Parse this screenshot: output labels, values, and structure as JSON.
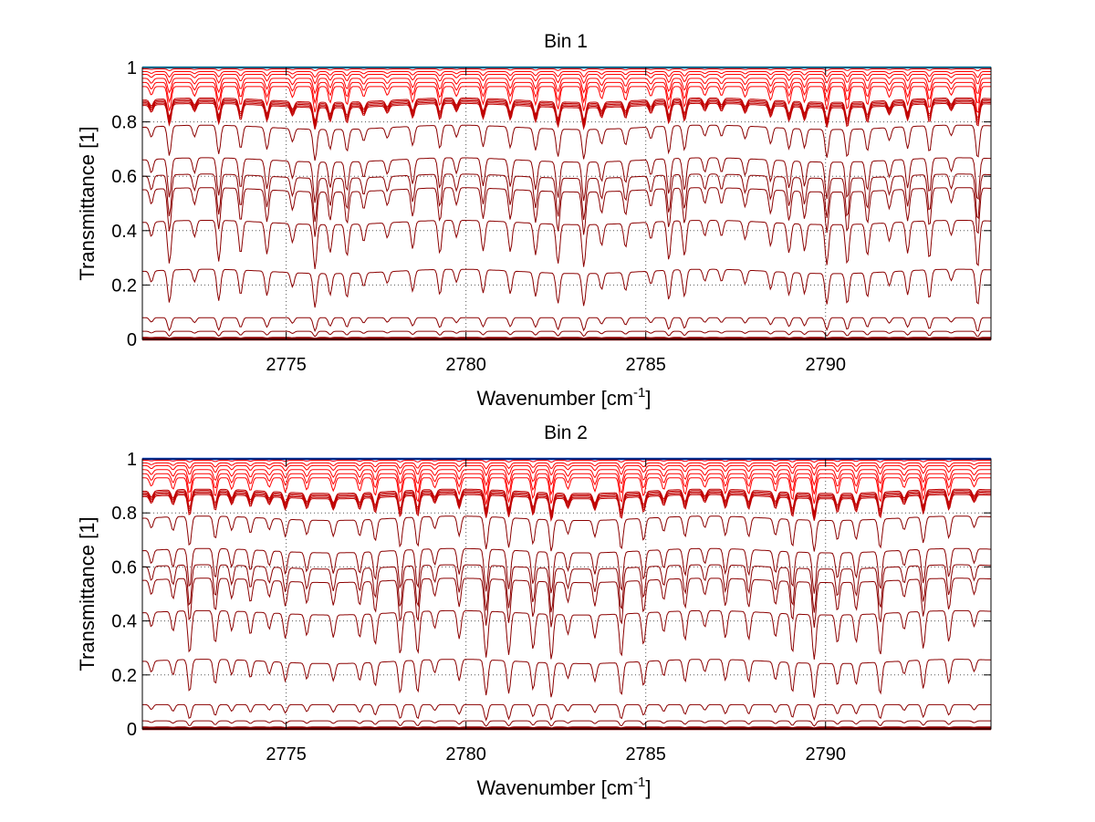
{
  "chart_data": [
    {
      "type": "line",
      "title": "Bin 1",
      "xlabel": "Wavenumber [cm",
      "xlabel_sup": "-1",
      "xlabel_close": "]",
      "ylabel": "Transmittance [1]",
      "xlim": [
        2771,
        2794.6
      ],
      "ylim": [
        0,
        1
      ],
      "xticks": [
        2775,
        2780,
        2785,
        2790
      ],
      "xtick_labels": [
        "2775",
        "2780",
        "2785",
        "2790"
      ],
      "yticks": [
        0,
        0.2,
        0.4,
        0.6,
        0.8,
        1
      ],
      "ytick_labels": [
        "0",
        "0.2",
        "0.4",
        "0.6",
        "0.8",
        "1"
      ],
      "grid": true,
      "series_colors": [
        "#00bfff",
        "#ff0000",
        "#c00000",
        "#8b0000"
      ],
      "series_baselines": [
        1.0,
        0.995,
        0.985,
        0.975,
        0.96,
        0.945,
        0.93,
        0.88,
        0.875,
        0.87,
        0.865,
        0.86,
        0.78,
        0.66,
        0.6,
        0.55,
        0.43,
        0.25,
        0.08,
        0.03,
        0.005,
        0.0
      ]
    },
    {
      "type": "line",
      "title": "Bin 2",
      "xlabel": "Wavenumber [cm",
      "xlabel_sup": "-1",
      "xlabel_close": "]",
      "ylabel": "Transmittance [1]",
      "xlim": [
        2771,
        2794.6
      ],
      "ylim": [
        0,
        1
      ],
      "xticks": [
        2775,
        2780,
        2785,
        2790
      ],
      "xtick_labels": [
        "2775",
        "2780",
        "2785",
        "2790"
      ],
      "yticks": [
        0,
        0.2,
        0.4,
        0.6,
        0.8,
        1
      ],
      "ytick_labels": [
        "0",
        "0.2",
        "0.4",
        "0.6",
        "0.8",
        "1"
      ],
      "grid": true,
      "series_colors": [
        "#0050ff",
        "#ff0000",
        "#c00000",
        "#8b0000"
      ],
      "series_baselines": [
        1.0,
        0.995,
        0.985,
        0.975,
        0.96,
        0.945,
        0.93,
        0.88,
        0.875,
        0.87,
        0.865,
        0.86,
        0.78,
        0.66,
        0.6,
        0.55,
        0.43,
        0.25,
        0.09,
        0.03,
        0.005,
        0.0
      ]
    }
  ]
}
